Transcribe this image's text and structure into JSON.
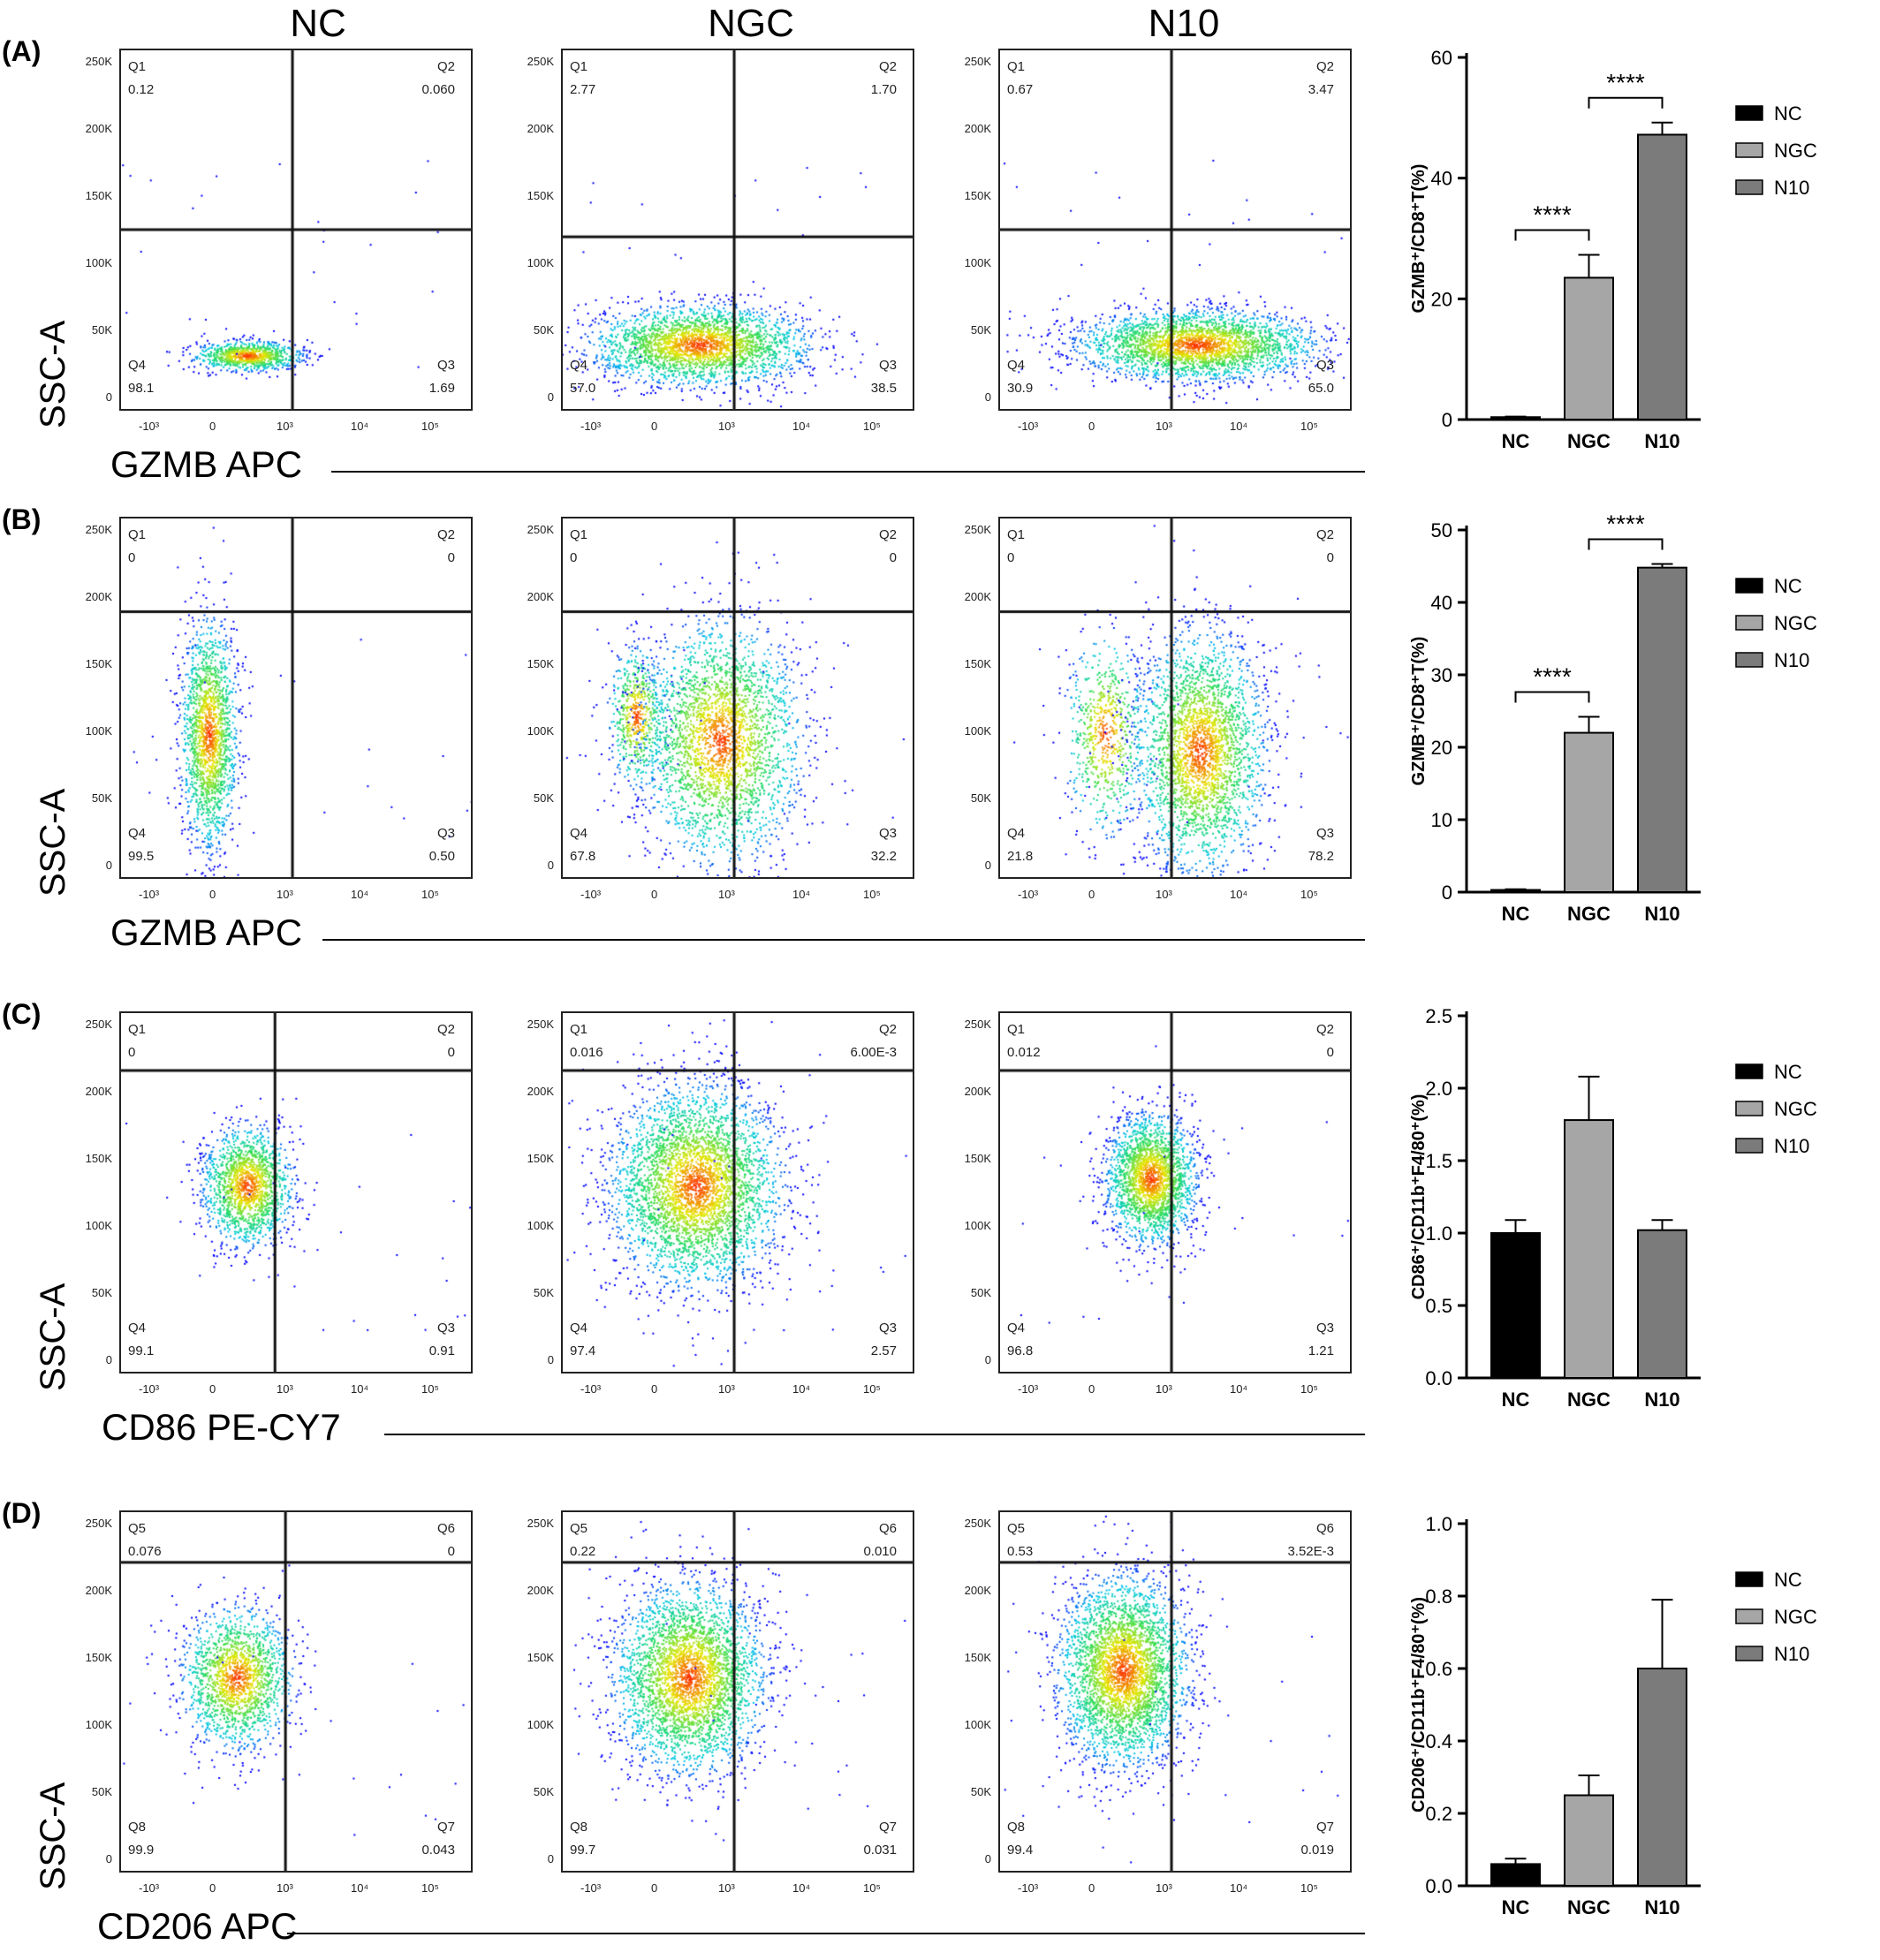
{
  "columns": [
    "NC",
    "NGC",
    "N10"
  ],
  "rows": [
    {
      "label": "(A)",
      "ylabel": "SSC-A",
      "xlabel": "GZMB APC",
      "qnames": [
        "Q1",
        "Q2",
        "Q3",
        "Q4"
      ],
      "yticks": [
        "250K",
        "200K",
        "150K",
        "100K",
        "50K",
        "0"
      ],
      "plots": [
        {
          "q": [
            "0.12",
            "0.060",
            "1.69",
            "98.1"
          ]
        },
        {
          "q": [
            "2.77",
            "1.70",
            "38.5",
            "57.0"
          ]
        },
        {
          "q": [
            "0.67",
            "3.47",
            "65.0",
            "30.9"
          ]
        }
      ]
    },
    {
      "label": "(B)",
      "ylabel": "SSC-A",
      "xlabel": "GZMB APC",
      "qnames": [
        "Q1",
        "Q2",
        "Q3",
        "Q4"
      ],
      "yticks": [
        "250K",
        "200K",
        "150K",
        "100K",
        "50K",
        "0"
      ],
      "plots": [
        {
          "q": [
            "0",
            "0",
            "0.50",
            "99.5"
          ]
        },
        {
          "q": [
            "0",
            "0",
            "32.2",
            "67.8"
          ]
        },
        {
          "q": [
            "0",
            "0",
            "78.2",
            "21.8"
          ]
        }
      ]
    },
    {
      "label": "(C)",
      "ylabel": "SSC-A",
      "xlabel": "CD86 PE-CY7",
      "qnames": [
        "Q1",
        "Q2",
        "Q3",
        "Q4"
      ],
      "yticks": [
        "250K",
        "200K",
        "150K",
        "100K",
        "50K",
        "0"
      ],
      "plots": [
        {
          "q": [
            "0",
            "0",
            "0.91",
            "99.1"
          ]
        },
        {
          "q": [
            "0.016",
            "6.00E-3",
            "2.57",
            "97.4"
          ]
        },
        {
          "q": [
            "0.012",
            "0",
            "1.21",
            "96.8"
          ]
        }
      ]
    },
    {
      "label": "(D)",
      "ylabel": "SSC-A",
      "xlabel": "CD206 APC",
      "qnames": [
        "Q5",
        "Q6",
        "Q7",
        "Q8"
      ],
      "yticks": [
        "250K",
        "200K",
        "150K",
        "100K",
        "50K",
        "0"
      ],
      "plots": [
        {
          "q": [
            "0.076",
            "0",
            "0.043",
            "99.9"
          ]
        },
        {
          "q": [
            "0.22",
            "0.010",
            "0.031",
            "99.7"
          ]
        },
        {
          "q": [
            "0.53",
            "3.52E-3",
            "0.019",
            "99.4"
          ]
        }
      ]
    }
  ],
  "xticks": [
    "-10³",
    "0",
    "10³",
    "10⁴",
    "10⁵"
  ],
  "colors": {
    "NC": "#000000",
    "NGC": "#a6a6a6",
    "N10": "#7b7b7b"
  },
  "chart_data": [
    {
      "type": "bar",
      "categories": [
        "NC",
        "NGC",
        "N10"
      ],
      "values": [
        0.4,
        23.5,
        47.2
      ],
      "errors": [
        0.1,
        3.8,
        2.0
      ],
      "ylabel": "GZMB⁺/CD8⁺T(%)",
      "ylim": [
        0,
        60
      ],
      "yticks": [
        "0",
        "20",
        "40",
        "60"
      ],
      "legend": [
        "NC",
        "NGC",
        "N10"
      ],
      "legend_position": "right",
      "annotations": [
        {
          "pair": [
            0,
            1
          ],
          "text": "****"
        },
        {
          "pair": [
            1,
            2
          ],
          "text": "****"
        }
      ]
    },
    {
      "type": "bar",
      "categories": [
        "NC",
        "NGC",
        "N10"
      ],
      "values": [
        0.3,
        22.0,
        44.8
      ],
      "errors": [
        0.1,
        2.2,
        0.5
      ],
      "ylabel": "GZMB⁺/CD8⁺T(%)",
      "ylim": [
        0,
        50
      ],
      "yticks": [
        "0",
        "10",
        "20",
        "30",
        "40",
        "50"
      ],
      "legend": [
        "NC",
        "NGC",
        "N10"
      ],
      "legend_position": "right",
      "annotations": [
        {
          "pair": [
            0,
            1
          ],
          "text": "****"
        },
        {
          "pair": [
            1,
            2
          ],
          "text": "****"
        }
      ]
    },
    {
      "type": "bar",
      "categories": [
        "NC",
        "NGC",
        "N10"
      ],
      "values": [
        1.0,
        1.78,
        1.02
      ],
      "errors": [
        0.09,
        0.3,
        0.07
      ],
      "ylabel": "CD86⁺/CD11b⁺F4/80⁺(%)",
      "ylim": [
        0,
        2.5
      ],
      "yticks": [
        "0.0",
        "0.5",
        "1.0",
        "1.5",
        "2.0",
        "2.5"
      ],
      "legend": [
        "NC",
        "NGC",
        "N10"
      ],
      "legend_position": "right",
      "annotations": []
    },
    {
      "type": "bar",
      "categories": [
        "NC",
        "NGC",
        "N10"
      ],
      "values": [
        0.06,
        0.25,
        0.6
      ],
      "errors": [
        0.015,
        0.055,
        0.19
      ],
      "ylabel": "CD206⁺/CD11b⁺F4/80⁺(%)",
      "ylim": [
        0,
        1.0
      ],
      "yticks": [
        "0.0",
        "0.2",
        "0.4",
        "0.6",
        "0.8",
        "1.0"
      ],
      "legend": [
        "NC",
        "NGC",
        "N10"
      ],
      "legend_position": "right",
      "annotations": []
    }
  ]
}
